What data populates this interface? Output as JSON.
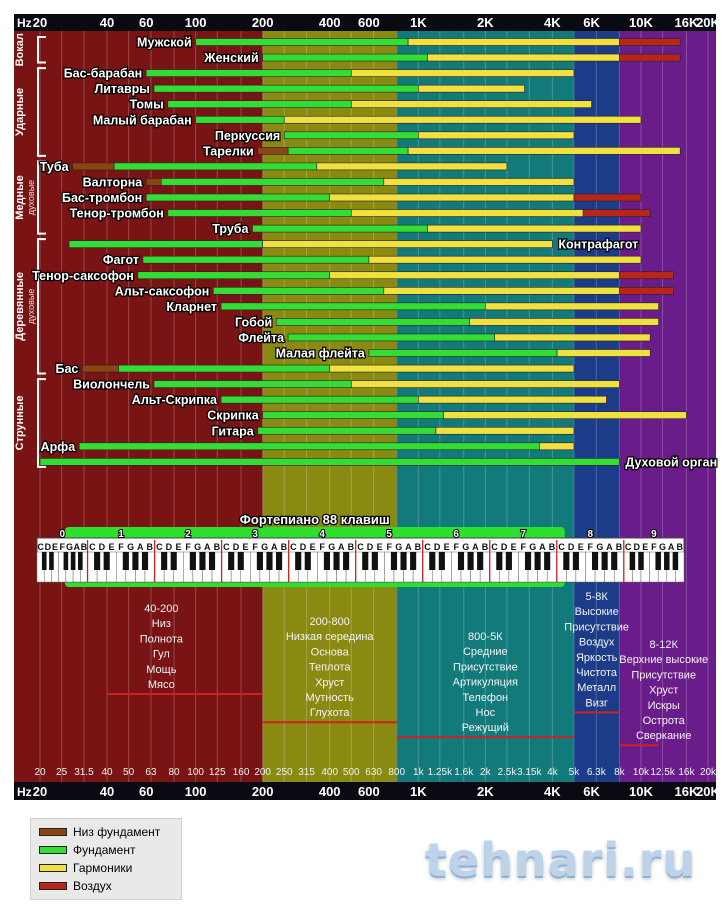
{
  "chart_data": {
    "type": "bar",
    "subtype": "frequency-range",
    "axis": {
      "label": "Hz",
      "scale": "log",
      "range_hz": [
        20,
        20000
      ],
      "major_ticks": [
        {
          "hz": 20,
          "label": "20"
        },
        {
          "hz": 40,
          "label": "40"
        },
        {
          "hz": 60,
          "label": "60"
        },
        {
          "hz": 100,
          "label": "100"
        },
        {
          "hz": 200,
          "label": "200"
        },
        {
          "hz": 400,
          "label": "400"
        },
        {
          "hz": 600,
          "label": "600"
        },
        {
          "hz": 1000,
          "label": "1K"
        },
        {
          "hz": 2000,
          "label": "2K"
        },
        {
          "hz": 4000,
          "label": "4K"
        },
        {
          "hz": 6000,
          "label": "6K"
        },
        {
          "hz": 10000,
          "label": "10K"
        },
        {
          "hz": 16000,
          "label": "16K"
        },
        {
          "hz": 20000,
          "label": "20K"
        }
      ],
      "minor_ticks": [
        {
          "hz": 20,
          "label": "20"
        },
        {
          "hz": 25,
          "label": "25"
        },
        {
          "hz": 31.5,
          "label": "31.5"
        },
        {
          "hz": 40,
          "label": "40"
        },
        {
          "hz": 50,
          "label": "50"
        },
        {
          "hz": 63,
          "label": "63"
        },
        {
          "hz": 80,
          "label": "80"
        },
        {
          "hz": 100,
          "label": "100"
        },
        {
          "hz": 125,
          "label": "125"
        },
        {
          "hz": 160,
          "label": "160"
        },
        {
          "hz": 200,
          "label": "200"
        },
        {
          "hz": 250,
          "label": "250"
        },
        {
          "hz": 315,
          "label": "315"
        },
        {
          "hz": 400,
          "label": "400"
        },
        {
          "hz": 500,
          "label": "500"
        },
        {
          "hz": 630,
          "label": "630"
        },
        {
          "hz": 800,
          "label": "800"
        },
        {
          "hz": 1000,
          "label": "1k"
        },
        {
          "hz": 1250,
          "label": "1.25k"
        },
        {
          "hz": 1600,
          "label": "1.6k"
        },
        {
          "hz": 2000,
          "label": "2k"
        },
        {
          "hz": 2500,
          "label": "2.5k"
        },
        {
          "hz": 3150,
          "label": "3.15k"
        },
        {
          "hz": 4000,
          "label": "4k"
        },
        {
          "hz": 5000,
          "label": "5k"
        },
        {
          "hz": 6300,
          "label": "6.3k"
        },
        {
          "hz": 8000,
          "label": "8k"
        },
        {
          "hz": 10000,
          "label": "10k"
        },
        {
          "hz": 12500,
          "label": "12.5k"
        },
        {
          "hz": 16000,
          "label": "16k"
        },
        {
          "hz": 20000,
          "label": "20k"
        }
      ]
    },
    "bands": [
      {
        "from_hz": 20,
        "to_hz": 200,
        "color": "#7a1414"
      },
      {
        "from_hz": 200,
        "to_hz": 800,
        "color": "#8a8a12"
      },
      {
        "from_hz": 800,
        "to_hz": 5000,
        "color": "#127a7a"
      },
      {
        "from_hz": 5000,
        "to_hz": 8000,
        "color": "#1c3c8a"
      },
      {
        "from_hz": 8000,
        "to_hz": 20000,
        "color": "#6a1c8a"
      }
    ],
    "groups": [
      {
        "label": "Вокал",
        "sub": "",
        "first": 0,
        "last": 1
      },
      {
        "label": "Ударные",
        "sub": "",
        "first": 2,
        "last": 7
      },
      {
        "label": "Медные",
        "sub": "духовые",
        "first": 8,
        "last": 12
      },
      {
        "label": "Деревянные",
        "sub": "духовые",
        "first": 13,
        "last": 21
      },
      {
        "label": "Струнные",
        "sub": "",
        "first": 22,
        "last": 27
      }
    ],
    "series_legend": [
      {
        "key": "low",
        "label": "Низ фундамент",
        "color": "#8b4513"
      },
      {
        "key": "fund",
        "label": "Фундамент",
        "color": "#33dd33"
      },
      {
        "key": "harm",
        "label": "Гармоники",
        "color": "#f0e040"
      },
      {
        "key": "air",
        "label": "Воздух",
        "color": "#b8261a"
      }
    ],
    "instruments": [
      {
        "name": "Мужской",
        "label_side": "left",
        "low": null,
        "fund": [
          100,
          900
        ],
        "harm": [
          900,
          8000
        ],
        "air": [
          8000,
          15000
        ]
      },
      {
        "name": "Женский",
        "label_side": "left",
        "low": null,
        "fund": [
          200,
          1100
        ],
        "harm": [
          1100,
          8000
        ],
        "air": [
          8000,
          15000
        ]
      },
      {
        "name": "Бас-барабан",
        "label_side": "left",
        "low": null,
        "fund": [
          60,
          500
        ],
        "harm": [
          500,
          5000
        ],
        "air": null
      },
      {
        "name": "Литавры",
        "label_side": "left",
        "low": null,
        "fund": [
          65,
          1000
        ],
        "harm": [
          1000,
          3000
        ],
        "air": null
      },
      {
        "name": "Томы",
        "label_side": "left",
        "low": null,
        "fund": [
          75,
          500
        ],
        "harm": [
          500,
          6000
        ],
        "air": null
      },
      {
        "name": "Малый барабан",
        "label_side": "left",
        "low": null,
        "fund": [
          100,
          250
        ],
        "harm": [
          250,
          10000
        ],
        "air": null
      },
      {
        "name": "Перкуссия",
        "label_side": "left",
        "low": null,
        "fund": [
          250,
          1000
        ],
        "harm": [
          1000,
          5000
        ],
        "air": null
      },
      {
        "name": "Тарелки",
        "label_side": "left",
        "low": [
          190,
          260
        ],
        "fund": [
          260,
          900
        ],
        "harm": [
          900,
          15000
        ],
        "air": null
      },
      {
        "name": "Туба",
        "label_side": "left",
        "low": [
          28,
          43
        ],
        "fund": [
          43,
          350
        ],
        "harm": [
          350,
          2500
        ],
        "air": null
      },
      {
        "name": "Валторна",
        "label_side": "left",
        "low": [
          60,
          70
        ],
        "fund": [
          70,
          700
        ],
        "harm": [
          700,
          5000
        ],
        "air": null
      },
      {
        "name": "Бас-тромбон",
        "label_side": "left",
        "low": null,
        "fund": [
          60,
          400
        ],
        "harm": [
          400,
          5000
        ],
        "air": [
          5000,
          10000
        ]
      },
      {
        "name": "Тенор-тромбон",
        "label_side": "left",
        "low": null,
        "fund": [
          75,
          500
        ],
        "harm": [
          500,
          5500
        ],
        "air": [
          5500,
          11000
        ]
      },
      {
        "name": "Труба",
        "label_side": "left",
        "low": null,
        "fund": [
          180,
          1100
        ],
        "harm": [
          1100,
          10000
        ],
        "air": null
      },
      {
        "name": "Контрафагот",
        "label_side": "right",
        "low": null,
        "fund": [
          27,
          200
        ],
        "harm": [
          200,
          4000
        ],
        "air": null
      },
      {
        "name": "Фагот",
        "label_side": "left",
        "low": null,
        "fund": [
          58,
          600
        ],
        "harm": [
          600,
          10000
        ],
        "air": null
      },
      {
        "name": "Тенор-саксофон",
        "label_side": "left",
        "low": null,
        "fund": [
          55,
          400
        ],
        "harm": [
          400,
          8000
        ],
        "air": [
          8000,
          14000
        ]
      },
      {
        "name": "Альт-саксофон",
        "label_side": "left",
        "low": null,
        "fund": [
          120,
          700
        ],
        "harm": [
          700,
          8000
        ],
        "air": [
          8000,
          14000
        ]
      },
      {
        "name": "Кларнет",
        "label_side": "left",
        "low": null,
        "fund": [
          130,
          2000
        ],
        "harm": [
          2000,
          12000
        ],
        "air": null
      },
      {
        "name": "Гобой",
        "label_side": "left",
        "low": null,
        "fund": [
          230,
          1700
        ],
        "harm": [
          1700,
          12000
        ],
        "air": null
      },
      {
        "name": "Флейта",
        "label_side": "left",
        "low": null,
        "fund": [
          260,
          2200
        ],
        "harm": [
          2200,
          11000
        ],
        "air": null
      },
      {
        "name": "Малая флейта",
        "label_side": "left",
        "low": null,
        "fund": [
          600,
          4200
        ],
        "harm": [
          4200,
          11000
        ],
        "air": null
      },
      {
        "name": "Бас",
        "label_side": "left",
        "low": [
          31,
          45
        ],
        "fund": [
          45,
          400
        ],
        "harm": [
          400,
          5000
        ],
        "air": null
      },
      {
        "name": "Виолончель",
        "label_side": "left",
        "low": null,
        "fund": [
          65,
          500
        ],
        "harm": [
          500,
          8000
        ],
        "air": null
      },
      {
        "name": "Альт-Скрипка",
        "label_side": "left",
        "low": null,
        "fund": [
          130,
          1000
        ],
        "harm": [
          1000,
          7000
        ],
        "air": null
      },
      {
        "name": "Скрипка",
        "label_side": "left",
        "low": null,
        "fund": [
          200,
          1300
        ],
        "harm": [
          1300,
          16000
        ],
        "air": null
      },
      {
        "name": "Гитара",
        "label_side": "left",
        "low": null,
        "fund": [
          190,
          1200
        ],
        "harm": [
          1200,
          5000
        ],
        "air": null
      },
      {
        "name": "Арфа",
        "label_side": "left",
        "low": null,
        "fund": [
          30,
          3500
        ],
        "harm": [
          3500,
          5000
        ],
        "air": null
      },
      {
        "name": "Духовой орган",
        "label_side": "right",
        "low": null,
        "fund": [
          20,
          8000
        ],
        "harm": null,
        "air": null
      }
    ],
    "piano": {
      "label": "Фортепиано 88 клавиш",
      "octaves": [
        {
          "num": "0",
          "from_hz": 20,
          "to_hz": 32.7
        },
        {
          "num": "1",
          "from_hz": 32.7,
          "to_hz": 65.4
        },
        {
          "num": "2",
          "from_hz": 65.4,
          "to_hz": 130.8
        },
        {
          "num": "3",
          "from_hz": 130.8,
          "to_hz": 261.6
        },
        {
          "num": "4",
          "from_hz": 261.6,
          "to_hz": 523.3
        },
        {
          "num": "5",
          "from_hz": 523.3,
          "to_hz": 1046.5
        },
        {
          "num": "6",
          "from_hz": 1046.5,
          "to_hz": 2093
        },
        {
          "num": "7",
          "from_hz": 2093,
          "to_hz": 4186
        },
        {
          "num": "8",
          "from_hz": 4186,
          "to_hz": 8372
        },
        {
          "num": "9",
          "from_hz": 8372,
          "to_hz": 20000
        }
      ],
      "note_letters": [
        "C",
        "D",
        "E",
        "F",
        "G",
        "A",
        "B"
      ],
      "range_hz": [
        27.5,
        4186
      ]
    },
    "band_descriptions": [
      {
        "from_hz": 20,
        "to_hz": 200,
        "line_from_hz": 40,
        "line_to_hz": 200,
        "lines": [
          "40-200",
          "Низ",
          "Полнота",
          "Гул",
          "Мощь",
          "Мясо"
        ]
      },
      {
        "from_hz": 200,
        "to_hz": 800,
        "line_from_hz": 200,
        "line_to_hz": 800,
        "lines": [
          "200-800",
          "Низкая середина",
          "Основа",
          "Теплота",
          "Хруст",
          "Мутность",
          "Глухота"
        ]
      },
      {
        "from_hz": 800,
        "to_hz": 5000,
        "line_from_hz": 800,
        "line_to_hz": 5000,
        "lines": [
          "800-5К",
          "Средние",
          "Присутствие",
          "Артикуляция",
          "Телефон",
          "Нос",
          "Режущий"
        ]
      },
      {
        "from_hz": 5000,
        "to_hz": 8000,
        "line_from_hz": 5000,
        "line_to_hz": 8000,
        "lines": [
          "5-8К",
          "Высокие",
          "Присутствие",
          "Воздух",
          "Яркость",
          "Чистота",
          "Металл",
          "Визг"
        ]
      },
      {
        "from_hz": 8000,
        "to_hz": 20000,
        "line_from_hz": 8000,
        "line_to_hz": 12000,
        "lines": [
          "8-12К",
          "Верхние высокие",
          "Присутствие",
          "Хруст",
          "Искры",
          "Острота",
          "Сверкание"
        ]
      }
    ]
  },
  "watermark": "tehnari.ru"
}
